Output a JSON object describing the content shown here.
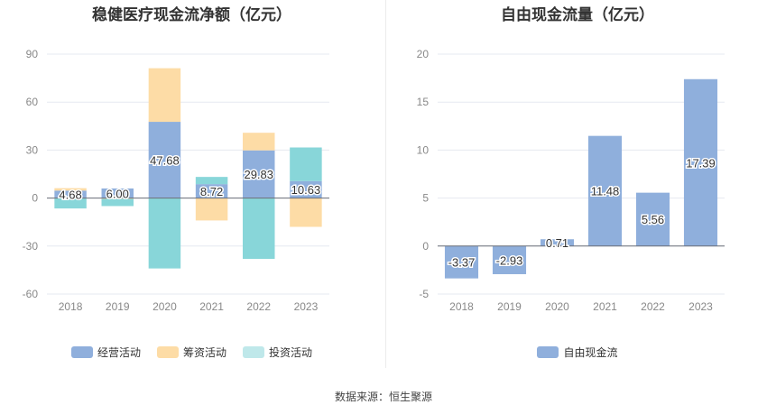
{
  "chart_data": [
    {
      "type": "bar",
      "title": "稳健医疗现金流净额（亿元）",
      "categories": [
        "2018",
        "2019",
        "2020",
        "2021",
        "2022",
        "2023"
      ],
      "ylim": [
        -60,
        90
      ],
      "yticks": [
        90,
        60,
        30,
        0,
        -30,
        -60
      ],
      "stacked": true,
      "grid": true,
      "legend_position": "bottom",
      "series": [
        {
          "name": "经营活动",
          "color": "#8fafdc",
          "values": [
            4.68,
            6.0,
            47.68,
            8.72,
            29.83,
            10.63
          ]
        },
        {
          "name": "筹资活动",
          "color": "#fddca6",
          "values": [
            1.5,
            -0.5,
            33.5,
            -14.0,
            11.0,
            -18.0
          ]
        },
        {
          "name": "投资活动",
          "color": "#88d6d9",
          "values": [
            -6.5,
            -4.5,
            -44.0,
            4.5,
            -38.0,
            21.0
          ]
        }
      ],
      "data_labels": [
        "4.68",
        "6.00",
        "47.68",
        "8.72",
        "29.83",
        "10.63"
      ]
    },
    {
      "type": "bar",
      "title": "自由现金流量（亿元）",
      "categories": [
        "2018",
        "2019",
        "2020",
        "2021",
        "2022",
        "2023"
      ],
      "ylim": [
        -5,
        20
      ],
      "yticks": [
        20,
        15,
        10,
        5,
        0,
        -5
      ],
      "grid": true,
      "legend_position": "bottom",
      "series": [
        {
          "name": "自由现金流",
          "color": "#8fafdc",
          "values": [
            -3.37,
            -2.93,
            0.71,
            11.48,
            5.56,
            17.39
          ]
        }
      ],
      "data_labels": [
        "-3.37",
        "-2.93",
        "0.71",
        "11.48",
        "5.56",
        "17.39"
      ]
    }
  ],
  "footer": {
    "source": "数据来源：恒生聚源"
  }
}
